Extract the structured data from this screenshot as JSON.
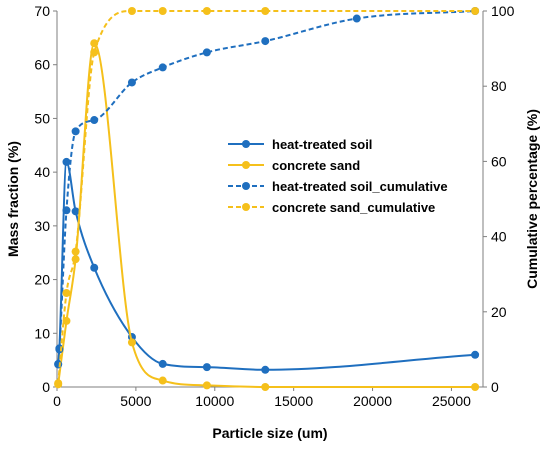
{
  "chart_data": {
    "type": "line",
    "xlabel": "Particle size (um)",
    "ylabel_left": "Mass fraction (%)",
    "ylabel_right": "Cumulative percentage (%)",
    "xlim": [
      0,
      27000
    ],
    "ylim_left": [
      0,
      70
    ],
    "ylim_right": [
      0,
      100
    ],
    "x_ticks": [
      "0",
      "5000",
      "10000",
      "15000",
      "20000",
      "25000"
    ],
    "y_left_ticks": [
      "0",
      "10",
      "20",
      "30",
      "40",
      "50",
      "60",
      "70"
    ],
    "y_right_ticks": [
      "0",
      "20",
      "40",
      "60",
      "80",
      "100"
    ],
    "legend_position": "center-right",
    "colors": {
      "blue": "#1f6fbf",
      "yellow": "#f5c01b"
    },
    "series": [
      {
        "name": "heat-treated soil",
        "axis": "left",
        "style": "solid",
        "color": "#1f6fbf",
        "x": [
          75,
          150,
          600,
          1180,
          2360,
          4750,
          6700,
          9500,
          13200,
          26500
        ],
        "y": [
          4.3,
          7.2,
          41.9,
          32.7,
          22.2,
          9.3,
          4.3,
          3.7,
          3.2,
          6.0
        ]
      },
      {
        "name": "concrete sand",
        "axis": "left",
        "style": "solid",
        "color": "#f5c01b",
        "x": [
          75,
          600,
          1180,
          2360,
          4750,
          6700,
          9500,
          13200,
          26500
        ],
        "y": [
          0.5,
          12.3,
          23.8,
          64.0,
          8.3,
          1.2,
          0.3,
          0.0,
          0.0
        ],
        "comment": ""
      },
      {
        "name": "heat-treated soil_cumulative",
        "axis": "right",
        "style": "dashed",
        "color": "#1f6fbf",
        "x": [
          75,
          150,
          600,
          1180,
          2360,
          4750,
          6700,
          9500,
          13200,
          19000,
          26500
        ],
        "y": [
          6,
          10,
          47,
          68,
          71,
          81,
          85,
          89,
          92,
          98,
          100
        ]
      },
      {
        "name": "concrete sand_cumulative",
        "axis": "right",
        "style": "dashed",
        "color": "#f5c01b",
        "x": [
          75,
          600,
          1180,
          2360,
          4750,
          6700,
          9500,
          13200,
          26500
        ],
        "y": [
          1,
          25,
          36,
          89,
          100,
          100,
          100,
          100,
          100
        ]
      }
    ]
  }
}
